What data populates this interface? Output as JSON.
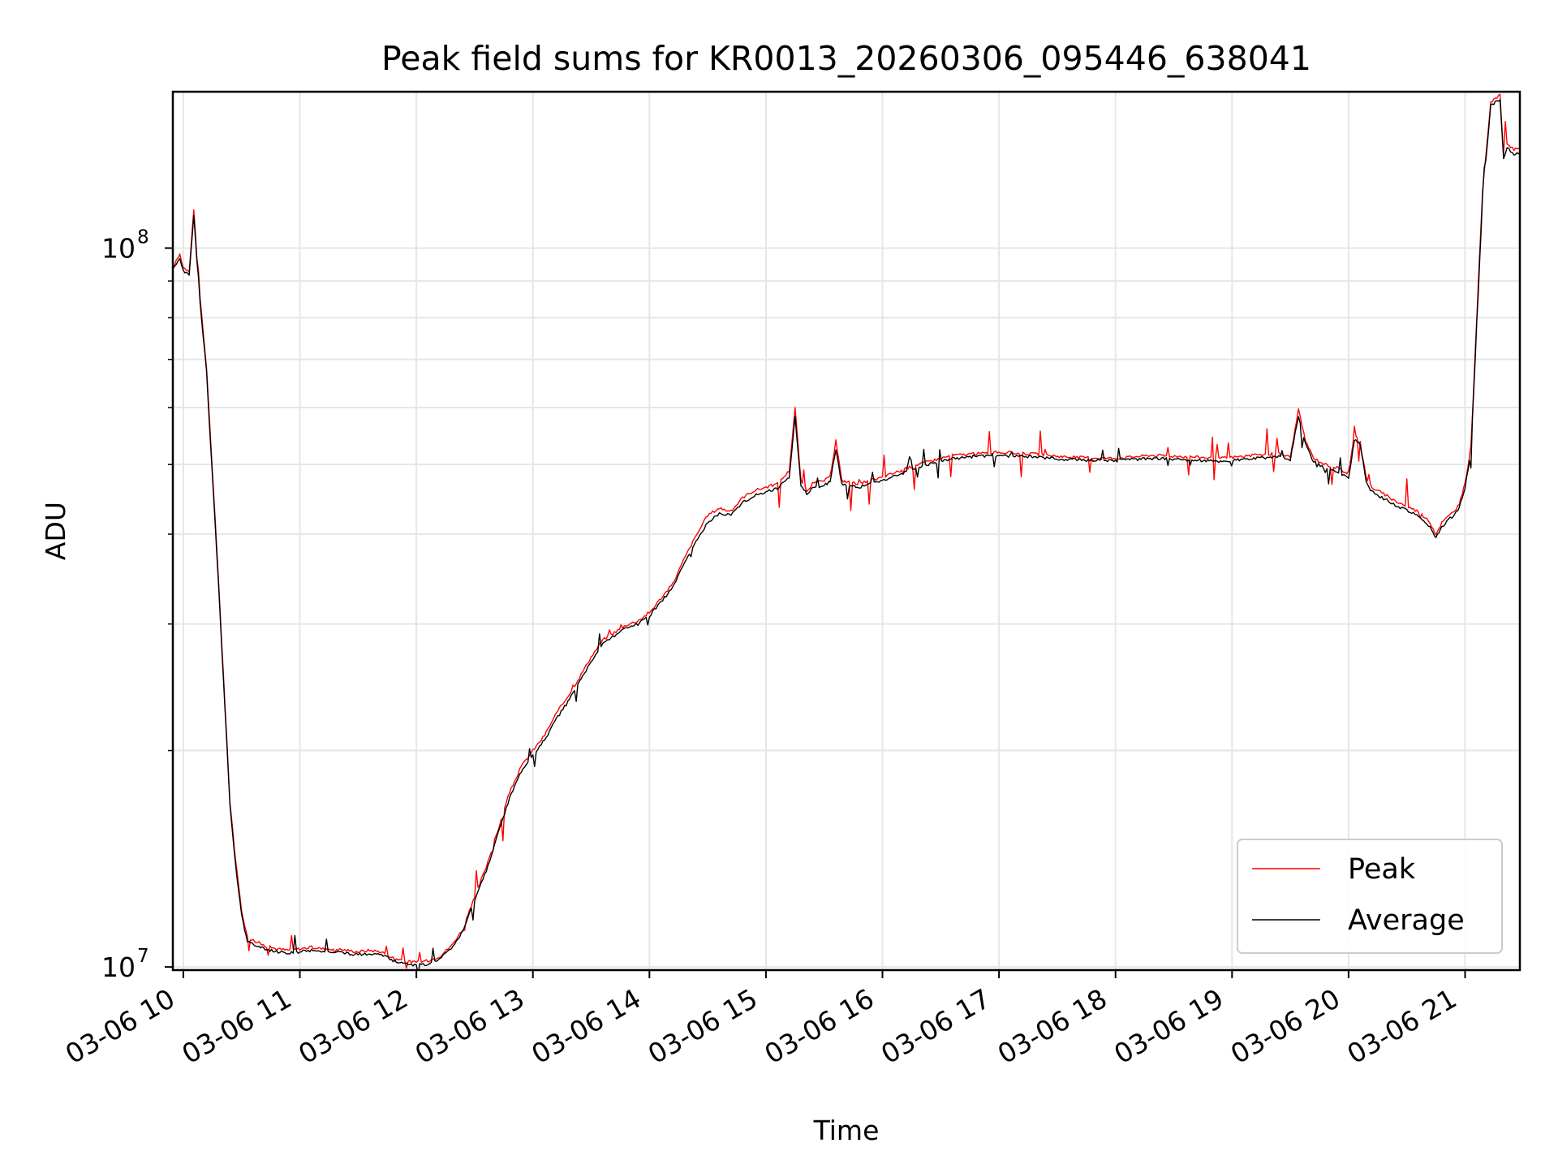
{
  "chart_data": {
    "type": "line",
    "title": "Peak field sums for KR0013_20260306_095446_638041",
    "xlabel": "Time",
    "ylabel": "ADU",
    "yscale": "log",
    "ylim": [
      9900000,
      165000000
    ],
    "xlim_hours": [
      9.91,
      21.47
    ],
    "x_tick_values": [
      10,
      11,
      12,
      13,
      14,
      15,
      16,
      17,
      18,
      19,
      20,
      21
    ],
    "x_tick_labels": [
      "03-06 10",
      "03-06 11",
      "03-06 12",
      "03-06 13",
      "03-06 14",
      "03-06 15",
      "03-06 16",
      "03-06 17",
      "03-06 18",
      "03-06 19",
      "03-06 20",
      "03-06 21"
    ],
    "y_major_ticks": [
      {
        "value": 10000000,
        "base": "10",
        "exp": "7"
      },
      {
        "value": 100000000,
        "base": "10",
        "exp": "8"
      }
    ],
    "y_minor_ticks": [
      20000000,
      30000000,
      40000000,
      50000000,
      60000000,
      70000000,
      80000000,
      90000000
    ],
    "grid": true,
    "legend_position": "lower-right",
    "series": [
      {
        "name": "Peak",
        "color": "#ff0000",
        "x": [
          9.91,
          9.97,
          10.0,
          10.05,
          10.09,
          10.13,
          10.2,
          10.3,
          10.4,
          10.45,
          10.5,
          10.55,
          10.6,
          10.65,
          10.7,
          10.8,
          10.9,
          11.0,
          11.1,
          11.2,
          11.3,
          11.4,
          11.5,
          11.6,
          11.7,
          11.8,
          11.9,
          12.0,
          12.1,
          12.2,
          12.3,
          12.4,
          12.5,
          12.6,
          12.7,
          12.8,
          12.9,
          13.0,
          13.1,
          13.2,
          13.3,
          13.4,
          13.5,
          13.6,
          13.7,
          13.8,
          13.9,
          14.0,
          14.1,
          14.2,
          14.3,
          14.4,
          14.5,
          14.6,
          14.7,
          14.8,
          14.9,
          15.0,
          15.1,
          15.2,
          15.25,
          15.3,
          15.35,
          15.4,
          15.5,
          15.55,
          15.6,
          15.65,
          15.7,
          15.8,
          16.0,
          16.3,
          16.6,
          17.0,
          17.3,
          17.6,
          18.0,
          18.3,
          18.6,
          18.9,
          19.2,
          19.4,
          19.5,
          19.57,
          19.63,
          19.7,
          19.8,
          19.9,
          20.0,
          20.05,
          20.1,
          20.15,
          20.2,
          20.4,
          20.6,
          20.7,
          20.75,
          20.8,
          20.9,
          20.95,
          21.0,
          21.05,
          21.1,
          21.15,
          21.22,
          21.3,
          21.33,
          21.36,
          21.42,
          21.47
        ],
        "values": [
          94000000,
          98000000,
          94000000,
          93000000,
          113000000,
          90000000,
          68000000,
          35000000,
          17000000,
          14000000,
          12000000,
          11000000,
          10900000,
          10800000,
          10700000,
          10600000,
          10550000,
          10600000,
          10650000,
          10600000,
          10600000,
          10550000,
          10500000,
          10550000,
          10500000,
          10300000,
          10200000,
          10150000,
          10200000,
          10350000,
          10700000,
          11300000,
          12500000,
          13800000,
          15500000,
          17500000,
          19000000,
          20000000,
          21000000,
          22500000,
          23800000,
          25300000,
          27000000,
          28500000,
          29200000,
          29900000,
          30300000,
          31100000,
          32600000,
          34100000,
          37000000,
          39800000,
          42500000,
          43500000,
          43000000,
          45000000,
          46000000,
          46500000,
          47000000,
          49000000,
          60000000,
          47500000,
          46000000,
          47000000,
          47500000,
          48000000,
          54000000,
          47500000,
          47300000,
          47000000,
          48000000,
          50000000,
          51500000,
          52000000,
          51700000,
          51200000,
          51000000,
          51500000,
          51300000,
          51000000,
          51500000,
          51800000,
          51200000,
          59500000,
          54000000,
          51000000,
          50000000,
          49500000,
          48500000,
          55000000,
          54000000,
          48000000,
          46500000,
          44500000,
          43000000,
          41500000,
          40000000,
          41500000,
          43000000,
          44000000,
          47000000,
          53000000,
          80000000,
          120000000,
          160000000,
          163000000,
          135000000,
          140000000,
          137000000,
          138000000
        ]
      },
      {
        "name": "Average",
        "color": "#000000",
        "x": [
          9.91,
          9.97,
          10.0,
          10.05,
          10.09,
          10.13,
          10.2,
          10.3,
          10.4,
          10.45,
          10.5,
          10.55,
          10.6,
          10.65,
          10.7,
          10.8,
          10.9,
          11.0,
          11.1,
          11.2,
          11.3,
          11.4,
          11.5,
          11.6,
          11.7,
          11.8,
          11.9,
          12.0,
          12.1,
          12.2,
          12.3,
          12.4,
          12.5,
          12.6,
          12.7,
          12.8,
          12.9,
          13.0,
          13.1,
          13.2,
          13.3,
          13.4,
          13.5,
          13.6,
          13.7,
          13.8,
          13.9,
          14.0,
          14.1,
          14.2,
          14.3,
          14.4,
          14.5,
          14.6,
          14.7,
          14.8,
          14.9,
          15.0,
          15.1,
          15.2,
          15.25,
          15.3,
          15.35,
          15.4,
          15.5,
          15.55,
          15.6,
          15.65,
          15.7,
          15.8,
          16.0,
          16.3,
          16.6,
          17.0,
          17.3,
          17.6,
          18.0,
          18.3,
          18.6,
          18.9,
          19.2,
          19.4,
          19.5,
          19.57,
          19.63,
          19.7,
          19.8,
          19.9,
          20.0,
          20.05,
          20.1,
          20.15,
          20.2,
          20.4,
          20.6,
          20.7,
          20.75,
          20.8,
          20.9,
          20.95,
          21.0,
          21.05,
          21.1,
          21.15,
          21.22,
          21.3,
          21.33,
          21.36,
          21.42,
          21.47
        ],
        "values": [
          93000000,
          97000000,
          93000000,
          92000000,
          111000000,
          89000000,
          67000000,
          34500000,
          16800000,
          13800000,
          11800000,
          10850000,
          10750000,
          10650000,
          10600000,
          10500000,
          10450000,
          10500000,
          10550000,
          10500000,
          10500000,
          10450000,
          10400000,
          10450000,
          10400000,
          10200000,
          10100000,
          10050000,
          10100000,
          10250000,
          10600000,
          11200000,
          12400000,
          13600000,
          15300000,
          17200000,
          18700000,
          19700000,
          20700000,
          22100000,
          23400000,
          24900000,
          26600000,
          28200000,
          28900000,
          29600000,
          30000000,
          30800000,
          32200000,
          33700000,
          36400000,
          39000000,
          41500000,
          42800000,
          42500000,
          44300000,
          45300000,
          45800000,
          46300000,
          48000000,
          58500000,
          46800000,
          45500000,
          46300000,
          46800000,
          47300000,
          52500000,
          46900000,
          46700000,
          46500000,
          47500000,
          49500000,
          51000000,
          51500000,
          51200000,
          50800000,
          50600000,
          51000000,
          50800000,
          50500000,
          51000000,
          51300000,
          50700000,
          58500000,
          53300000,
          50400000,
          49400000,
          48900000,
          47900000,
          54200000,
          53300000,
          47300000,
          45800000,
          43900000,
          42400000,
          40900000,
          39500000,
          41000000,
          42500000,
          43500000,
          46500000,
          52000000,
          78000000,
          118000000,
          158000000,
          161000000,
          133000000,
          138000000,
          135000000,
          136000000
        ]
      }
    ]
  }
}
